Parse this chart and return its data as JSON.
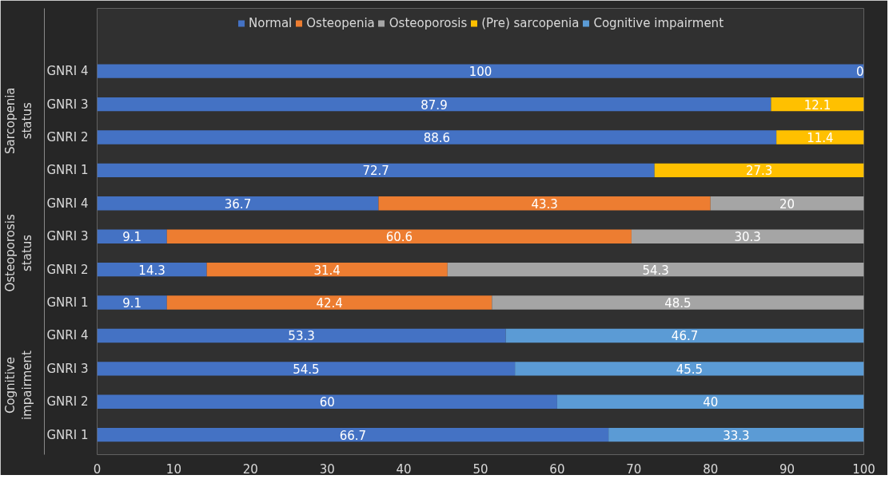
{
  "chart_data": {
    "type": "bar",
    "orientation": "horizontal",
    "stacked": true,
    "data_labels": true,
    "legend": "top",
    "grid": false,
    "categories": [
      "GNRI 4",
      "GNRI 3",
      "GNRI 2",
      "GNRI 1",
      "GNRI 4",
      "GNRI 3",
      "GNRI 2",
      "GNRI 1",
      "GNRI 4",
      "GNRI 3",
      "GNRI 2",
      "GNRI 1"
    ],
    "annotations": [
      "Sarcopenia status",
      "Osteoporosis status",
      "Cognitive impairment"
    ],
    "xlim": [
      0,
      100
    ],
    "xticks": [
      0,
      10,
      20,
      30,
      40,
      50,
      60,
      70,
      80,
      90,
      100
    ],
    "series": [
      {
        "name": "Normal",
        "color": "#4472c4",
        "values": [
          100,
          87.9,
          88.6,
          72.7,
          36.7,
          9.1,
          14.3,
          9.1,
          53.3,
          54.5,
          60,
          66.7
        ]
      },
      {
        "name": "Osteopenia",
        "color": "#ed7d31",
        "values": [
          null,
          null,
          null,
          null,
          43.3,
          60.6,
          31.4,
          42.4,
          null,
          null,
          null,
          null
        ]
      },
      {
        "name": "Osteoporosis",
        "color": "#a5a5a5",
        "values": [
          null,
          null,
          null,
          null,
          20,
          30.3,
          54.3,
          48.5,
          null,
          null,
          null,
          null
        ]
      },
      {
        "name": "(Pre) sarcopenia",
        "color": "#ffc000",
        "values": [
          0,
          12.1,
          11.4,
          27.3,
          null,
          null,
          null,
          null,
          null,
          null,
          null,
          null
        ]
      },
      {
        "name": "Cognitive impairment",
        "color": "#5b9bd5",
        "values": [
          null,
          null,
          null,
          null,
          null,
          null,
          null,
          null,
          46.7,
          45.5,
          40,
          33.3
        ]
      }
    ]
  }
}
